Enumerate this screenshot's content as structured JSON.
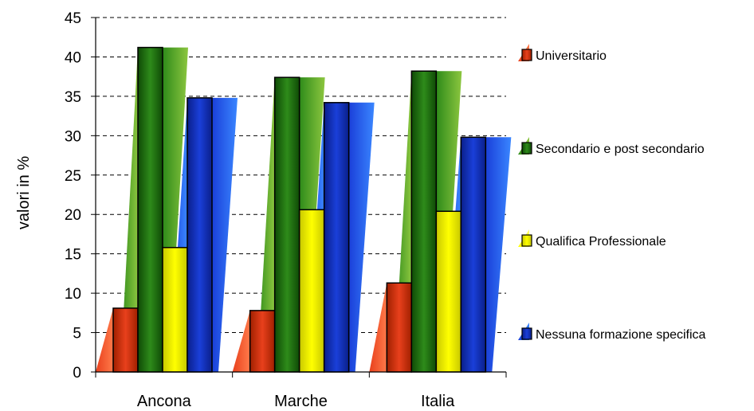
{
  "chart_data": {
    "type": "bar",
    "categories": [
      "Ancona",
      "Marche",
      "Italia"
    ],
    "series": [
      {
        "name": "Universitario",
        "values": [
          8.1,
          7.8,
          11.3
        ],
        "color": "#e8401c",
        "light": "#ff7a4a",
        "dark": "#a02000"
      },
      {
        "name": "Secondario e post secondario",
        "values": [
          41.2,
          37.4,
          38.2
        ],
        "color": "#2e8b1a",
        "light": "#8cc63f",
        "dark": "#0f4a06"
      },
      {
        "name": "Qualifica Professionale",
        "values": [
          15.8,
          20.6,
          20.4
        ],
        "color": "#ffff00",
        "light": "#ffff66",
        "dark": "#c8c800"
      },
      {
        "name": "Nessuna formazione specifica",
        "values": [
          34.8,
          34.2,
          29.8
        ],
        "color": "#1a3fd9",
        "light": "#3a86ff",
        "dark": "#0a1f8a"
      }
    ],
    "ylabel": "valori in %",
    "xlabel": "",
    "title": "",
    "ylim": [
      0,
      45
    ],
    "yticks": [
      0,
      5,
      10,
      15,
      20,
      25,
      30,
      35,
      40,
      45
    ],
    "grid": true,
    "legend_position": "right"
  }
}
